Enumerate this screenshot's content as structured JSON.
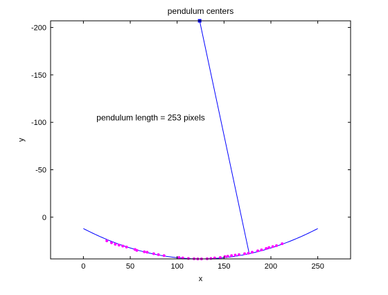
{
  "chart_data": {
    "type": "scatter",
    "title": "pendulum centers",
    "xlabel": "x",
    "ylabel": "y",
    "xlim": [
      -35,
      285
    ],
    "ylim": [
      -207,
      44
    ],
    "y_reversed": true,
    "xticks": [
      0,
      50,
      100,
      150,
      200,
      250
    ],
    "yticks": [
      -200,
      -150,
      -100,
      -50,
      0
    ],
    "grid": false,
    "annotation": {
      "text": "pendulum length = 253 pixels",
      "x": 14,
      "y": -105
    },
    "pivot": {
      "x": 124,
      "y": -207
    },
    "bob": {
      "x": 177,
      "y": 39
    },
    "arc": {
      "x_from": 0,
      "x_to": 250,
      "vertex_x": 125,
      "vertex_y": 44,
      "endpoint_y": 12
    },
    "colors": {
      "arc": "#0000ff",
      "rod": "#0000ff",
      "points": "#ff00ff",
      "pivot": "#0000ff"
    },
    "points": [
      [
        25,
        25
      ],
      [
        30,
        27
      ],
      [
        34,
        28.5
      ],
      [
        38,
        29.5
      ],
      [
        42,
        30.5
      ],
      [
        46,
        31.5
      ],
      [
        55,
        34
      ],
      [
        57,
        35
      ],
      [
        65,
        36.5
      ],
      [
        68,
        37
      ],
      [
        75,
        38.5
      ],
      [
        80,
        39.5
      ],
      [
        86,
        40.5
      ],
      [
        102,
        42.5
      ],
      [
        106,
        43
      ],
      [
        112,
        43.5
      ],
      [
        118,
        43.8
      ],
      [
        122,
        44
      ],
      [
        126,
        44
      ],
      [
        132,
        43.8
      ],
      [
        136,
        43.5
      ],
      [
        140,
        43
      ],
      [
        146,
        42.5
      ],
      [
        151,
        41.5
      ],
      [
        154,
        41.2
      ],
      [
        158,
        40.5
      ],
      [
        162,
        40
      ],
      [
        166,
        39.5
      ],
      [
        172,
        38.5
      ],
      [
        176,
        38
      ],
      [
        180,
        37
      ],
      [
        186,
        35.5
      ],
      [
        190,
        34.5
      ],
      [
        195,
        33
      ],
      [
        198,
        32
      ],
      [
        202,
        31
      ],
      [
        206,
        30
      ],
      [
        212,
        28
      ]
    ]
  }
}
